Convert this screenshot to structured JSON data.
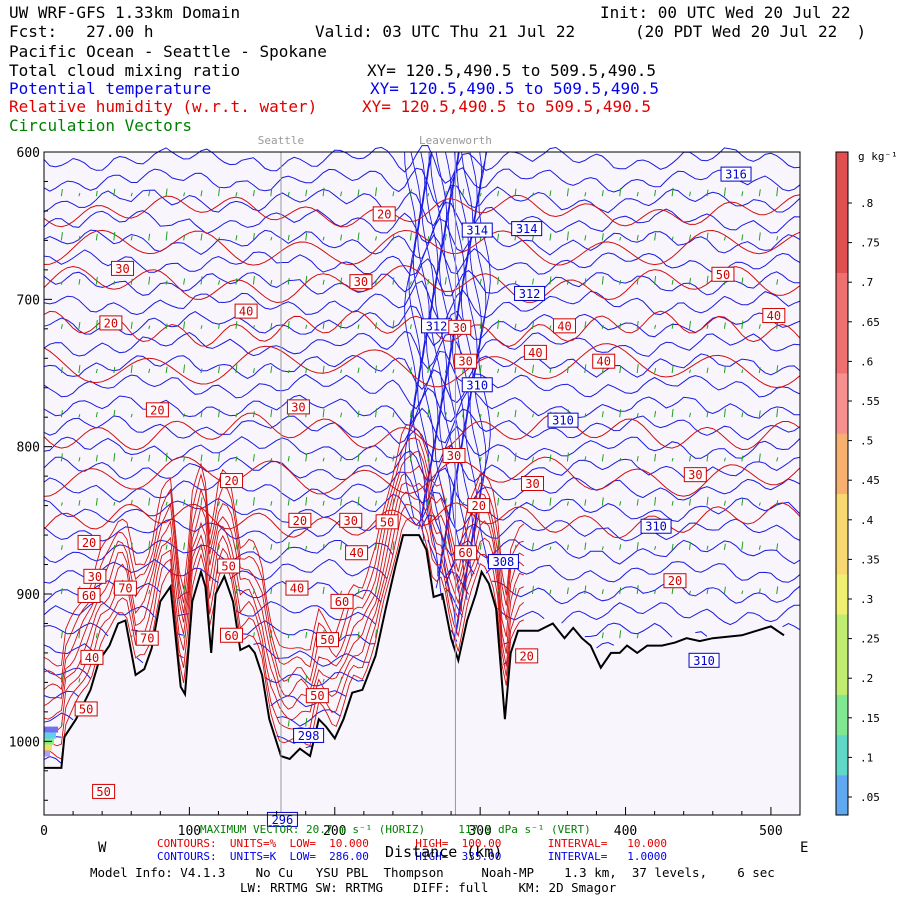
{
  "header": {
    "line1_left": "UW WRF-GFS 1.33km Domain",
    "line1_right": "Init: 00 UTC Wed 20 Jul 22",
    "line2_left": "Fcst:   27.00 h",
    "line2_mid": "Valid: 03 UTC Thu 21 Jul 22",
    "line2_right": "(20 PDT Wed 20 Jul 22  )",
    "region": "Pacific Ocean - Seattle - Spokane",
    "field1": "Total cloud mixing ratio",
    "field1_xy": "XY= 120.5,490.5 to 509.5,490.5",
    "field2": "Potential temperature",
    "field2_xy": "XY= 120.5,490.5 to 509.5,490.5",
    "field3": "Relative humidity (w.r.t. water)",
    "field3_xy": "XY= 120.5,490.5 to 509.5,490.5",
    "field4": "Circulation Vectors"
  },
  "places": {
    "seattle": "Seattle",
    "leavenworth": "Leavenworth"
  },
  "footer": {
    "max_vector": "MAXIMUM VECTOR: 20.7 m s⁻¹ (HORIZ)     117.5 dPa s⁻¹ (VERT)",
    "rh_contours": "CONTOURS:  UNITS=%  LOW=  10.000       HIGH=  100.00       INTERVAL=   10.000",
    "th_contours": "CONTOURS:  UNITS=K  LOW=  286.00       HIGH=  335.00       INTERVAL=   1.0000",
    "xlabel": "Distance (km)",
    "west": "W",
    "east": "E",
    "model_info": "Model Info: V4.1.3    No Cu   YSU PBL  Thompson     Noah-MP    1.3 km,  37 levels,    6 sec",
    "model_info2": "LW: RRTMG SW: RRTMG    DIFF: full    KM: 2D Smagor"
  },
  "colorbar": {
    "unit": "g kg⁻¹",
    "ticks": [
      ".05",
      ".1",
      ".15",
      ".2",
      ".25",
      ".3",
      ".35",
      ".4",
      ".45",
      ".5",
      ".55",
      ".6",
      ".65",
      ".7",
      ".75",
      ".8"
    ]
  },
  "chart_data": {
    "type": "cross-section",
    "xlabel": "Distance (km)",
    "ylabel": "",
    "xlim": [
      0,
      520
    ],
    "ylim": [
      1050,
      600
    ],
    "x_ticks": [
      0,
      100,
      200,
      300,
      400,
      500
    ],
    "y_ticks": [
      600,
      700,
      800,
      900,
      1000
    ],
    "y_tick_labels": [
      "600",
      "700",
      "800",
      "900",
      "1000"
    ],
    "places": [
      {
        "name": "Seattle",
        "x": 163
      },
      {
        "name": "Leavenworth",
        "x": 283
      }
    ],
    "theta_labels": [
      {
        "x": 476,
        "p": 615,
        "v": "316"
      },
      {
        "x": 298,
        "p": 653,
        "v": "314"
      },
      {
        "x": 332,
        "p": 652,
        "v": "314"
      },
      {
        "x": 334,
        "p": 696,
        "v": "312"
      },
      {
        "x": 270,
        "p": 718,
        "v": "312"
      },
      {
        "x": 298,
        "p": 758,
        "v": "310"
      },
      {
        "x": 357,
        "p": 782,
        "v": "310"
      },
      {
        "x": 421,
        "p": 854,
        "v": "310"
      },
      {
        "x": 316,
        "p": 878,
        "v": "308"
      },
      {
        "x": 454,
        "p": 945,
        "v": "310"
      },
      {
        "x": 182,
        "p": 996,
        "v": "298"
      },
      {
        "x": 164,
        "p": 1053,
        "v": "296"
      }
    ],
    "rh_labels": [
      {
        "x": 234,
        "p": 642,
        "v": "20"
      },
      {
        "x": 54,
        "p": 679,
        "v": "30"
      },
      {
        "x": 218,
        "p": 688,
        "v": "30"
      },
      {
        "x": 139,
        "p": 708,
        "v": "40"
      },
      {
        "x": 46,
        "p": 716,
        "v": "20"
      },
      {
        "x": 286,
        "p": 719,
        "v": "30"
      },
      {
        "x": 358,
        "p": 718,
        "v": "40"
      },
      {
        "x": 467,
        "p": 683,
        "v": "50"
      },
      {
        "x": 502,
        "p": 711,
        "v": "40"
      },
      {
        "x": 338,
        "p": 736,
        "v": "40"
      },
      {
        "x": 385,
        "p": 742,
        "v": "40"
      },
      {
        "x": 290,
        "p": 742,
        "v": "30"
      },
      {
        "x": 78,
        "p": 775,
        "v": "20"
      },
      {
        "x": 175,
        "p": 773,
        "v": "30"
      },
      {
        "x": 282,
        "p": 806,
        "v": "30"
      },
      {
        "x": 129,
        "p": 823,
        "v": "20"
      },
      {
        "x": 336,
        "p": 825,
        "v": "30"
      },
      {
        "x": 448,
        "p": 819,
        "v": "30"
      },
      {
        "x": 299,
        "p": 840,
        "v": "20"
      },
      {
        "x": 176,
        "p": 850,
        "v": "20"
      },
      {
        "x": 211,
        "p": 850,
        "v": "30"
      },
      {
        "x": 236,
        "p": 851,
        "v": "50"
      },
      {
        "x": 31,
        "p": 865,
        "v": "20"
      },
      {
        "x": 215,
        "p": 872,
        "v": "40"
      },
      {
        "x": 290,
        "p": 872,
        "v": "60"
      },
      {
        "x": 127,
        "p": 881,
        "v": "50"
      },
      {
        "x": 35,
        "p": 888,
        "v": "30"
      },
      {
        "x": 56,
        "p": 896,
        "v": "70"
      },
      {
        "x": 174,
        "p": 896,
        "v": "40"
      },
      {
        "x": 205,
        "p": 905,
        "v": "60"
      },
      {
        "x": 31,
        "p": 901,
        "v": "60"
      },
      {
        "x": 434,
        "p": 891,
        "v": "20"
      },
      {
        "x": 129,
        "p": 928,
        "v": "60"
      },
      {
        "x": 195,
        "p": 931,
        "v": "50"
      },
      {
        "x": 71,
        "p": 930,
        "v": "70"
      },
      {
        "x": 33,
        "p": 943,
        "v": "40"
      },
      {
        "x": 332,
        "p": 942,
        "v": "20"
      },
      {
        "x": 188,
        "p": 969,
        "v": "50"
      },
      {
        "x": 29,
        "p": 978,
        "v": "50"
      },
      {
        "x": 41,
        "p": 1034,
        "v": "50"
      }
    ],
    "terrain": [
      [
        0,
        1018
      ],
      [
        3,
        1018
      ],
      [
        12,
        1018
      ],
      [
        14,
        997
      ],
      [
        22,
        985
      ],
      [
        32,
        965
      ],
      [
        38,
        945
      ],
      [
        45,
        935
      ],
      [
        51,
        920
      ],
      [
        56,
        918
      ],
      [
        63,
        955
      ],
      [
        69,
        951
      ],
      [
        74,
        937
      ],
      [
        80,
        905
      ],
      [
        87,
        895
      ],
      [
        94,
        963
      ],
      [
        97,
        968
      ],
      [
        102,
        905
      ],
      [
        108,
        885
      ],
      [
        111,
        895
      ],
      [
        115,
        940
      ],
      [
        118,
        900
      ],
      [
        124,
        888
      ],
      [
        130,
        905
      ],
      [
        135,
        938
      ],
      [
        141,
        935
      ],
      [
        145,
        940
      ],
      [
        150,
        955
      ],
      [
        155,
        985
      ],
      [
        163,
        1010
      ],
      [
        169,
        1012
      ],
      [
        176,
        1005
      ],
      [
        183,
        1010
      ],
      [
        189,
        985
      ],
      [
        194,
        990
      ],
      [
        200,
        998
      ],
      [
        206,
        985
      ],
      [
        212,
        967
      ],
      [
        219,
        965
      ],
      [
        228,
        942
      ],
      [
        235,
        910
      ],
      [
        242,
        880
      ],
      [
        247,
        860
      ],
      [
        253,
        860
      ],
      [
        258,
        860
      ],
      [
        263,
        870
      ],
      [
        268,
        902
      ],
      [
        274,
        900
      ],
      [
        280,
        930
      ],
      [
        285,
        945
      ],
      [
        291,
        918
      ],
      [
        297,
        900
      ],
      [
        301,
        885
      ],
      [
        306,
        893
      ],
      [
        311,
        910
      ],
      [
        317,
        985
      ],
      [
        321,
        940
      ],
      [
        326,
        925
      ],
      [
        331,
        925
      ],
      [
        340,
        925
      ],
      [
        350,
        920
      ],
      [
        358,
        930
      ],
      [
        364,
        923
      ],
      [
        370,
        930
      ],
      [
        376,
        935
      ],
      [
        383,
        950
      ],
      [
        390,
        940
      ],
      [
        396,
        940
      ],
      [
        401,
        935
      ],
      [
        408,
        940
      ],
      [
        415,
        935
      ],
      [
        425,
        935
      ],
      [
        434,
        933
      ],
      [
        442,
        930
      ],
      [
        451,
        932
      ],
      [
        460,
        930
      ],
      [
        470,
        929
      ],
      [
        480,
        928
      ],
      [
        490,
        925
      ],
      [
        500,
        922
      ],
      [
        509,
        928
      ]
    ]
  }
}
